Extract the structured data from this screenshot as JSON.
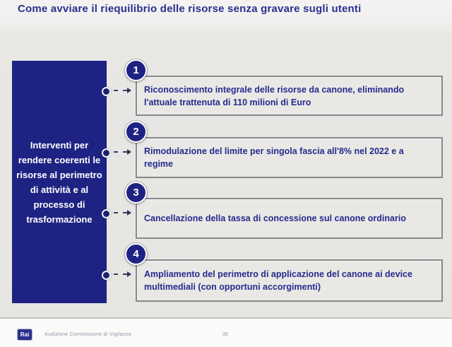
{
  "slide": {
    "title": "Come avviare il riequilibrio delle risorse senza gravare sugli utenti",
    "left_panel": {
      "text": "Interventi per rendere coerenti le risorse al perimetro di attività e al processo di trasformazione"
    },
    "items": [
      {
        "number": "1",
        "text": "Riconoscimento integrale delle risorse da canone, eliminando l'attuale trattenuta di 110 milioni di Euro"
      },
      {
        "number": "2",
        "text": "Rimodulazione del limite per singola fascia all'8% nel 2022 e a regime"
      },
      {
        "number": "3",
        "text": "Cancellazione della tassa di concessione sul canone ordinario"
      },
      {
        "number": "4",
        "text": "Ampliamento del perimetro di applicazione del canone ai device multimediali (con opportuni accorgimenti)"
      }
    ]
  },
  "footer": {
    "logo_text": "Rai",
    "caption": "Audizione Commissione di Vigilanza",
    "page_number": "39"
  },
  "colors": {
    "navy_panel": "#1e2383",
    "title_text": "#2a2f8f",
    "item_text": "#252b8d",
    "box_border": "#87888c",
    "slide_background": "#e6e5e2",
    "footer_background": "#fafaf9"
  }
}
